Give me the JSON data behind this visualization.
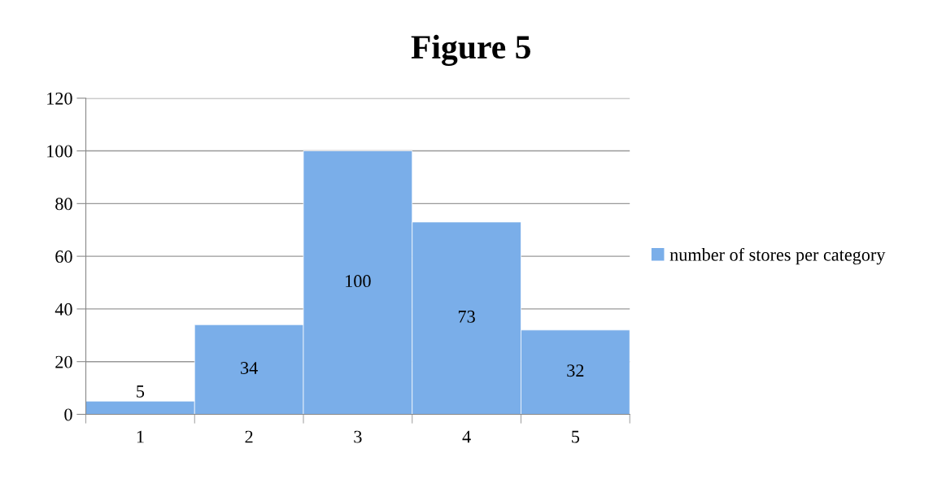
{
  "chart_data": {
    "type": "bar",
    "title": "Figure 5",
    "categories": [
      "1",
      "2",
      "3",
      "4",
      "5"
    ],
    "series": [
      {
        "name": "number of stores per category",
        "color": "#7aaee9",
        "values": [
          5,
          34,
          100,
          73,
          32
        ]
      }
    ],
    "ylim": [
      0,
      120
    ],
    "yticks": [
      0,
      20,
      40,
      60,
      80,
      100,
      120
    ],
    "grid": "y",
    "legend": "right",
    "data_labels": true
  }
}
